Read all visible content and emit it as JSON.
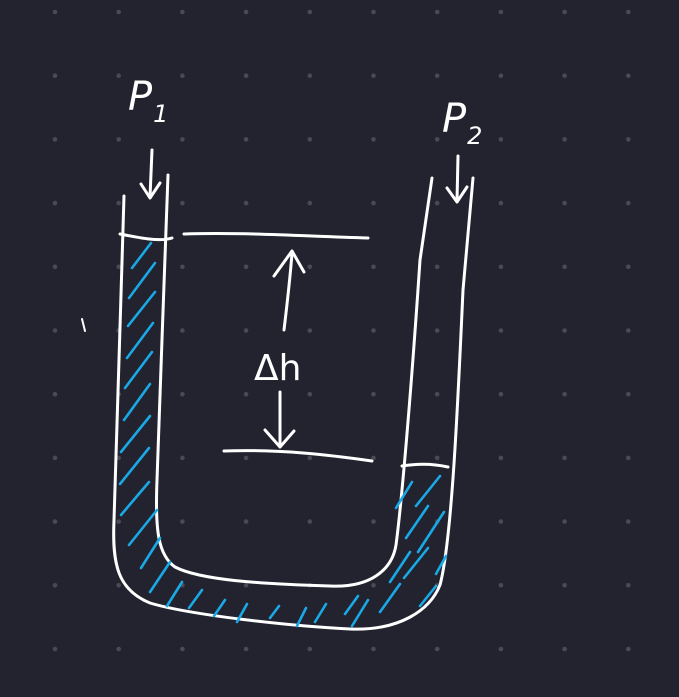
{
  "labels": {
    "p1_base": "P",
    "p1_sub": "1",
    "p2_base": "P",
    "p2_sub": "2",
    "delta_h": "Δh"
  },
  "colors": {
    "background": "#23222f",
    "grid_dot": "#4a4956",
    "ink": "#ffffff",
    "fluid_hatch": "#19a9e6"
  }
}
